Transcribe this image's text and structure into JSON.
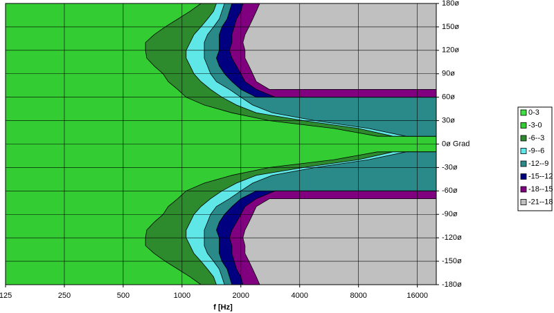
{
  "chart_data": {
    "type": "contour",
    "xlabel": "f [Hz]",
    "log_x": true,
    "xlim": [
      125,
      20000
    ],
    "xticks": [
      125,
      250,
      500,
      1000,
      2000,
      4000,
      8000,
      16000
    ],
    "ylim": [
      -180,
      180
    ],
    "yticks": [
      {
        "value": -180,
        "label": "-180ø"
      },
      {
        "value": -150,
        "label": "-150ø"
      },
      {
        "value": -120,
        "label": "-120ø"
      },
      {
        "value": -90,
        "label": "-90ø"
      },
      {
        "value": -60,
        "label": "-60ø"
      },
      {
        "value": -30,
        "label": "-30ø"
      },
      {
        "value": 0,
        "label": "0ø  Grad"
      },
      {
        "value": 30,
        "label": "30ø"
      },
      {
        "value": 60,
        "label": "60ø"
      },
      {
        "value": 90,
        "label": "90ø"
      },
      {
        "value": 120,
        "label": "120ø"
      },
      {
        "value": 150,
        "label": "150ø"
      },
      {
        "value": 180,
        "label": "180ø"
      }
    ],
    "grid": true,
    "legend": "right",
    "y": [
      -180,
      -170,
      -160,
      -150,
      -140,
      -130,
      -120,
      -110,
      -100,
      -90,
      -80,
      -70,
      -60,
      -50,
      -40,
      -30,
      -20,
      -10,
      0,
      10,
      20,
      30,
      40,
      50,
      60,
      70,
      80,
      90,
      100,
      110,
      120,
      130,
      140,
      150,
      160,
      170,
      180
    ],
    "series": [
      {
        "name": "0-3",
        "color": "#3fe03f",
        "values": [
          null,
          null,
          null,
          null,
          null,
          null,
          null,
          null,
          null,
          null,
          null,
          null,
          null,
          null,
          null,
          null,
          null,
          null,
          null,
          null,
          null,
          null,
          null,
          null,
          null,
          null,
          null,
          null,
          null,
          null,
          null,
          null,
          null,
          null,
          null,
          null,
          null
        ]
      },
      {
        "name": "-3-0",
        "color": "#33cc33",
        "values": [
          125,
          125,
          125,
          125,
          125,
          125,
          125,
          125,
          125,
          125,
          125,
          125,
          125,
          125,
          125,
          125,
          125,
          125,
          125,
          125,
          125,
          125,
          125,
          125,
          125,
          125,
          125,
          125,
          125,
          125,
          125,
          125,
          125,
          125,
          125,
          125,
          125
        ]
      },
      {
        "name": "-6--3",
        "color": "#2d8a2d",
        "values": [
          1250,
          1100,
          950,
          820,
          720,
          650,
          650,
          660,
          720,
          800,
          850,
          950,
          1050,
          1300,
          1800,
          2800,
          6000,
          10000,
          null,
          10000,
          6000,
          2800,
          1800,
          1300,
          1050,
          950,
          850,
          800,
          720,
          660,
          650,
          650,
          720,
          820,
          950,
          1100,
          1250
        ]
      },
      {
        "name": "-9--6",
        "color": "#5fe6e6",
        "values": [
          1500,
          1450,
          1350,
          1250,
          1150,
          1100,
          1050,
          1050,
          1100,
          1150,
          1250,
          1400,
          1600,
          1900,
          2400,
          4200,
          8000,
          12000,
          null,
          12000,
          8000,
          4200,
          2400,
          1900,
          1600,
          1400,
          1250,
          1150,
          1100,
          1050,
          1050,
          1100,
          1150,
          1250,
          1350,
          1450,
          1500
        ]
      },
      {
        "name": "-12--9",
        "color": "#2a8a8a",
        "values": [
          1650,
          1600,
          1550,
          1450,
          1350,
          1300,
          1300,
          1300,
          1350,
          1400,
          1500,
          1750,
          2000,
          2300,
          2900,
          4800,
          9000,
          14000,
          null,
          14000,
          9000,
          4800,
          2900,
          2300,
          2000,
          1750,
          1500,
          1400,
          1350,
          1300,
          1300,
          1300,
          1350,
          1450,
          1550,
          1600,
          1650
        ]
      },
      {
        "name": "-15--12",
        "color": "#000080",
        "values": [
          1800,
          1750,
          1700,
          1600,
          1550,
          1550,
          1550,
          1500,
          1550,
          1650,
          1800,
          2000,
          2400,
          null,
          null,
          null,
          null,
          null,
          null,
          null,
          null,
          null,
          null,
          null,
          2400,
          2000,
          1800,
          1650,
          1550,
          1500,
          1550,
          1550,
          1550,
          1600,
          1700,
          1750,
          1800
        ]
      },
      {
        "name": "-18--15",
        "color": "#800080",
        "values": [
          2050,
          2000,
          1900,
          1850,
          1800,
          1800,
          1750,
          1800,
          1900,
          2000,
          2100,
          2400,
          3000,
          null,
          null,
          null,
          null,
          null,
          null,
          null,
          null,
          null,
          null,
          null,
          3000,
          2400,
          2100,
          2000,
          1900,
          1800,
          1750,
          1800,
          1800,
          1850,
          1900,
          2000,
          2050
        ]
      },
      {
        "name": "-21--18",
        "color": "#c0c0c0",
        "values": [
          2500,
          2400,
          2300,
          2200,
          2100,
          2100,
          2050,
          2100,
          2200,
          2300,
          2400,
          2800,
          null,
          null,
          null,
          null,
          null,
          null,
          null,
          null,
          null,
          null,
          null,
          null,
          null,
          2800,
          2400,
          2300,
          2200,
          2100,
          2100,
          2050,
          2100,
          2200,
          2300,
          2400,
          2500
        ]
      }
    ]
  }
}
